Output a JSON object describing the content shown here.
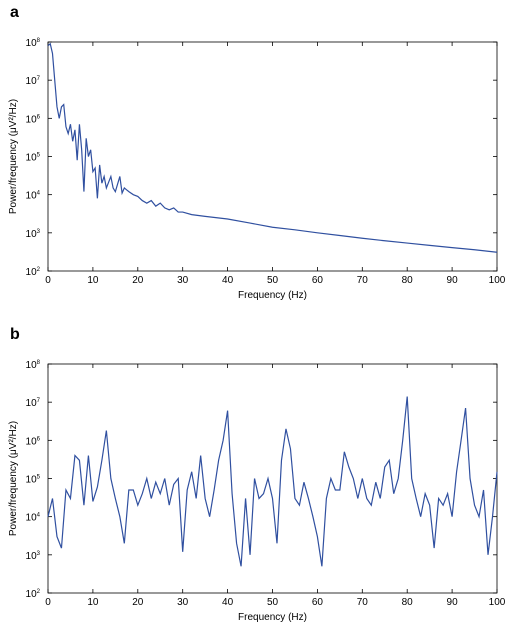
{
  "chart_data": [
    {
      "type": "line",
      "title": "a",
      "x_label": "Frequency (Hz)",
      "y_label": "Power/frequency (μV²/Hz)",
      "yscale": "log",
      "color": "#3050a0",
      "xlim": [
        0,
        100
      ],
      "xticks": [
        0,
        10,
        20,
        30,
        40,
        50,
        60,
        70,
        80,
        90,
        100
      ],
      "ylim": [
        100,
        100000000
      ],
      "yticks": [
        {
          "value": 100,
          "label": "10",
          "exponent": "2"
        },
        {
          "value": 1000,
          "label": "10",
          "exponent": "3"
        },
        {
          "value": 10000,
          "label": "10",
          "exponent": "4"
        },
        {
          "value": 100000,
          "label": "10",
          "exponent": "5"
        },
        {
          "value": 1000000,
          "label": "10",
          "exponent": "6"
        },
        {
          "value": 10000000,
          "label": "10",
          "exponent": "7"
        },
        {
          "value": 100000000,
          "label": "10",
          "exponent": "8"
        }
      ],
      "x": [
        0,
        0.5,
        1,
        1.5,
        2,
        2.5,
        3,
        3.5,
        4,
        4.5,
        5,
        5.5,
        6,
        6.5,
        7,
        7.5,
        8,
        8.5,
        9,
        9.5,
        10,
        10.5,
        11,
        11.5,
        12,
        12.5,
        13,
        14,
        14.5,
        15,
        16,
        16.5,
        17,
        18,
        19,
        20,
        21,
        22,
        23,
        24,
        25,
        26,
        27,
        28,
        29,
        30,
        32,
        35,
        40,
        45,
        50,
        55,
        60,
        65,
        70,
        75,
        80,
        85,
        90,
        95,
        100
      ],
      "values": [
        80000000,
        90000000,
        50000000,
        10000000,
        2000000,
        1000000,
        2000000,
        2300000,
        600000,
        400000,
        700000,
        250000,
        500000,
        80000,
        700000,
        150000,
        12000,
        300000,
        100000,
        150000,
        40000,
        50000,
        8000,
        60000,
        20000,
        30000,
        15000,
        30000,
        15000,
        12000,
        30000,
        11000,
        15000,
        12000,
        10000,
        9000,
        7000,
        6000,
        7000,
        5000,
        6000,
        4500,
        4000,
        4500,
        3500,
        3500,
        3000,
        2700,
        2300,
        1800,
        1400,
        1200,
        1000,
        850,
        720,
        620,
        540,
        470,
        410,
        360,
        310
      ]
    },
    {
      "type": "line",
      "title": "b",
      "x_label": "Frequency (Hz)",
      "y_label": "Power/frequency (μV²/Hz)",
      "yscale": "log",
      "color": "#3050a0",
      "xlim": [
        0,
        100
      ],
      "xticks": [
        0,
        10,
        20,
        30,
        40,
        50,
        60,
        70,
        80,
        90,
        100
      ],
      "ylim": [
        100,
        100000000
      ],
      "yticks": [
        {
          "value": 100,
          "label": "10",
          "exponent": "2"
        },
        {
          "value": 1000,
          "label": "10",
          "exponent": "3"
        },
        {
          "value": 10000,
          "label": "10",
          "exponent": "4"
        },
        {
          "value": 100000,
          "label": "10",
          "exponent": "5"
        },
        {
          "value": 1000000,
          "label": "10",
          "exponent": "6"
        },
        {
          "value": 10000000,
          "label": "10",
          "exponent": "7"
        },
        {
          "value": 100000000,
          "label": "10",
          "exponent": "8"
        }
      ],
      "x": [
        0,
        1,
        2,
        3,
        4,
        5,
        6,
        7,
        8,
        9,
        10,
        11,
        12,
        13,
        14,
        15,
        16,
        17,
        18,
        19,
        20,
        21,
        22,
        23,
        24,
        25,
        26,
        27,
        28,
        29,
        30,
        31,
        32,
        33,
        34,
        35,
        36,
        37,
        38,
        39,
        40,
        41,
        42,
        43,
        44,
        45,
        46,
        47,
        48,
        49,
        50,
        51,
        52,
        53,
        54,
        55,
        56,
        57,
        58,
        59,
        60,
        61,
        62,
        63,
        64,
        65,
        66,
        67,
        68,
        69,
        70,
        71,
        72,
        73,
        74,
        75,
        76,
        77,
        78,
        79,
        80,
        81,
        82,
        83,
        84,
        85,
        86,
        87,
        88,
        89,
        90,
        91,
        92,
        93,
        94,
        95,
        96,
        97,
        98,
        99,
        100
      ],
      "values": [
        10000,
        30000,
        3000,
        1500,
        50000,
        30000,
        400000,
        300000,
        20000,
        400000,
        25000,
        60000,
        300000,
        1800000,
        100000,
        30000,
        10000,
        2000,
        50000,
        50000,
        20000,
        40000,
        100000,
        30000,
        80000,
        40000,
        100000,
        20000,
        70000,
        100000,
        1200,
        50000,
        150000,
        30000,
        400000,
        30000,
        10000,
        50000,
        300000,
        1000000,
        6000000,
        40000,
        2000,
        500,
        30000,
        1000,
        100000,
        30000,
        40000,
        100000,
        30000,
        2000,
        300000,
        2000000,
        600000,
        30000,
        20000,
        80000,
        30000,
        10000,
        3000,
        500,
        30000,
        100000,
        50000,
        50000,
        500000,
        200000,
        100000,
        30000,
        100000,
        30000,
        20000,
        80000,
        30000,
        200000,
        300000,
        40000,
        100000,
        1000000,
        14000000,
        100000,
        30000,
        10000,
        40000,
        20000,
        1500,
        30000,
        20000,
        40000,
        10000,
        150000,
        1000000,
        7000000,
        100000,
        20000,
        10000,
        50000,
        1000,
        10000,
        150000
      ]
    }
  ]
}
